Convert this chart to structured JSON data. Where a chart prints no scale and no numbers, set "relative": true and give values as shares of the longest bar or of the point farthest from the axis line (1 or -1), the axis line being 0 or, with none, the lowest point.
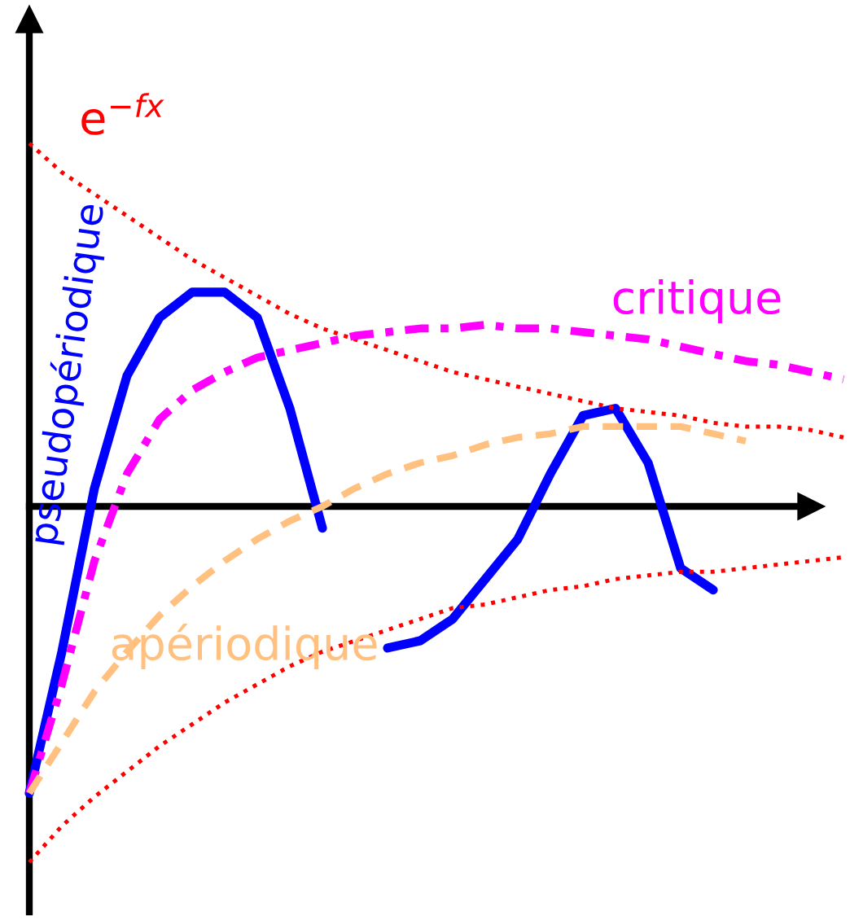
{
  "chart_data": {
    "type": "line",
    "relative": true,
    "legend": false,
    "categories": [
      null,
      null,
      null,
      null,
      null,
      null,
      null,
      null,
      null,
      null,
      null,
      null,
      null,
      null,
      null,
      null,
      null,
      null,
      null,
      null,
      null,
      null,
      null,
      null,
      null,
      null
    ],
    "series": [
      {
        "name": "e$^{−fx}$",
        "color": "#ff0000",
        "line_style": "dotted",
        "values": [
          1.0,
          0.92,
          0.86,
          0.8,
          0.74,
          0.68,
          0.63,
          0.58,
          0.53,
          0.49,
          0.46,
          0.43,
          0.4,
          0.37,
          0.35,
          0.33,
          0.31,
          0.29,
          0.27,
          0.26,
          0.25,
          0.23,
          0.22,
          0.22,
          0.21,
          0.19
        ]
      },
      {
        "color": "#ff0000",
        "line_style": "dotted",
        "values": [
          -0.98,
          -0.88,
          -0.8,
          -0.73,
          -0.66,
          -0.6,
          -0.54,
          -0.49,
          -0.44,
          -0.4,
          -0.37,
          -0.34,
          -0.31,
          -0.28,
          -0.27,
          -0.25,
          -0.23,
          -0.22,
          -0.2,
          -0.19,
          -0.18,
          -0.18,
          -0.17,
          -0.16,
          -0.15,
          -0.14
        ]
      },
      {
        "name": "critique",
        "color": "#ff00ff",
        "line_style": "dashdot",
        "values": [
          -0.79,
          -0.49,
          -0.15,
          0.09,
          0.24,
          0.32,
          0.37,
          0.41,
          0.43,
          0.45,
          0.47,
          0.48,
          0.49,
          0.49,
          0.5,
          0.49,
          0.49,
          0.48,
          0.47,
          0.46,
          0.44,
          0.42,
          0.4,
          0.39,
          0.37,
          0.35
        ]
      },
      {
        "name": "apériodique",
        "color": "#ffc080",
        "line_style": "dashed",
        "values": [
          -0.79,
          -0.65,
          -0.51,
          -0.4,
          -0.3,
          -0.22,
          -0.15,
          -0.09,
          -0.04,
          0.0,
          0.05,
          0.09,
          0.12,
          0.14,
          0.17,
          0.19,
          0.2,
          0.22,
          0.22,
          0.22,
          0.22,
          0.2,
          0.18,
          null,
          null,
          null
        ]
      },
      {
        "name": "pseudopériodique",
        "color": "#0000ff",
        "line_style": "solid",
        "values": [
          -0.79,
          -0.4,
          0.05,
          0.36,
          0.52,
          0.59,
          0.59,
          0.52,
          0.27,
          -0.06,
          null,
          -0.39,
          -0.37,
          -0.31,
          -0.2,
          -0.09,
          0.09,
          0.25,
          0.27,
          0.12,
          -0.17,
          -0.23,
          null,
          null,
          null,
          null
        ]
      }
    ]
  }
}
